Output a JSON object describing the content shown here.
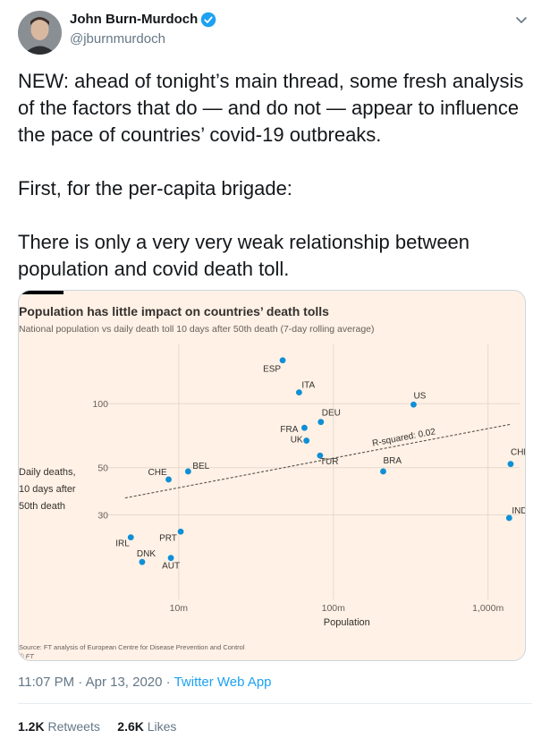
{
  "tweet": {
    "author_name": "John Burn-Murdoch",
    "author_handle": "@jburnmurdoch",
    "paragraphs": [
      "NEW: ahead of tonight’s main thread, some fresh analysis of the factors that do — and do not — appear to influence the pace of countries’ covid-19 outbreaks.",
      "First, for the per-capita brigade:",
      "There is only a very very weak relationship between population and covid death toll."
    ],
    "timestamp": "11:07 PM · Apr 13, 2020 · ",
    "source_app": "Twitter Web App",
    "retweets_count": "1.2K",
    "retweets_label": "Retweets",
    "likes_count": "2.6K",
    "likes_label": "Likes"
  },
  "icons": {
    "verified": "verified-badge-icon",
    "caret": "chevron-down-icon",
    "avatar": "avatar"
  },
  "colors": {
    "card_bg": "#fff1e5",
    "point": "#0f8fd6",
    "link": "#1da1f2"
  },
  "chart_data": {
    "type": "scatter",
    "title": "Population has little impact on countries’ death tolls",
    "subtitle": "National population vs daily death toll 10 days after 50th death (7-day rolling average)",
    "xlabel": "Population",
    "ylabel": [
      "Daily deaths,",
      "10 days after",
      "50th death"
    ],
    "x_scale": "log",
    "y_scale": "log",
    "x_ticks": [
      {
        "value": 10,
        "label": "10m"
      },
      {
        "value": 100,
        "label": "100m"
      },
      {
        "value": 1000,
        "label": "1,000m"
      }
    ],
    "y_ticks": [
      {
        "value": 30,
        "label": "30"
      },
      {
        "value": 50,
        "label": "50"
      },
      {
        "value": 100,
        "label": "100"
      }
    ],
    "xlim": [
      3.5,
      1600
    ],
    "ylim": [
      12,
      190
    ],
    "points": [
      {
        "label": "ESP",
        "x": 47,
        "y": 160
      },
      {
        "label": "ITA",
        "x": 60,
        "y": 113
      },
      {
        "label": "US",
        "x": 330,
        "y": 99
      },
      {
        "label": "DEU",
        "x": 83,
        "y": 82
      },
      {
        "label": "FRA",
        "x": 65,
        "y": 77
      },
      {
        "label": "UK",
        "x": 67,
        "y": 67
      },
      {
        "label": "TUR",
        "x": 82,
        "y": 57
      },
      {
        "label": "CHN",
        "x": 1400,
        "y": 52
      },
      {
        "label": "BRA",
        "x": 210,
        "y": 48
      },
      {
        "label": "BEL",
        "x": 11.5,
        "y": 48
      },
      {
        "label": "CHE",
        "x": 8.6,
        "y": 44
      },
      {
        "label": "IND",
        "x": 1370,
        "y": 29
      },
      {
        "label": "PRT",
        "x": 10.3,
        "y": 25
      },
      {
        "label": "IRL",
        "x": 4.9,
        "y": 23.5
      },
      {
        "label": "DNK",
        "x": 5.8,
        "y": 18
      },
      {
        "label": "AUT",
        "x": 8.9,
        "y": 18.8
      }
    ],
    "trendline": {
      "x": [
        4.5,
        1400
      ],
      "y": [
        36,
        80
      ]
    },
    "annotation": "R-squared: 0.02",
    "source": "Source: FT analysis of European Centre for Disease Prevention and Control",
    "credit": "© FT"
  }
}
